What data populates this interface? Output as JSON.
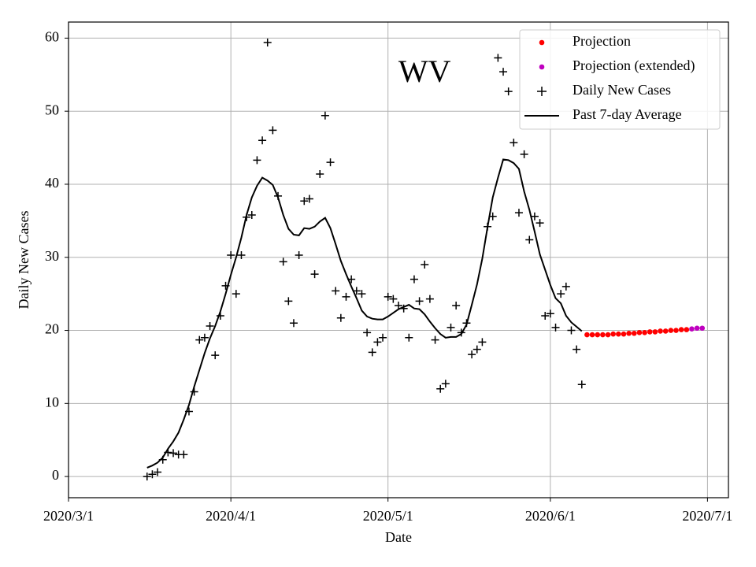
{
  "chart_data": {
    "type": "line",
    "xlabel": "Date",
    "ylabel": "Daily New Cases",
    "annotations": [
      {
        "text": "WV",
        "x": "2020/5/8",
        "y": 55
      }
    ],
    "xlim": [
      "2020/3/1",
      "2020/7/5"
    ],
    "xticks": [
      "2020/3/1",
      "2020/4/1",
      "2020/5/1",
      "2020/6/1",
      "2020/7/1"
    ],
    "ylim": [
      -2.9,
      62.2
    ],
    "yticks": [
      0,
      10,
      20,
      30,
      40,
      50,
      60
    ],
    "grid": true,
    "legend": "upper right",
    "series": [
      {
        "name": "Projection",
        "color": "#ff0000",
        "mode": "dots",
        "x": [
          "2020/6/8",
          "2020/6/9",
          "2020/6/10",
          "2020/6/11",
          "2020/6/12",
          "2020/6/13",
          "2020/6/14",
          "2020/6/15",
          "2020/6/16",
          "2020/6/17",
          "2020/6/18",
          "2020/6/19",
          "2020/6/20",
          "2020/6/21",
          "2020/6/22",
          "2020/6/23",
          "2020/6/24",
          "2020/6/25",
          "2020/6/26",
          "2020/6/27"
        ],
        "values": [
          19.4,
          19.4,
          19.4,
          19.4,
          19.4,
          19.5,
          19.5,
          19.5,
          19.6,
          19.6,
          19.7,
          19.7,
          19.8,
          19.8,
          19.9,
          19.9,
          20.0,
          20.0,
          20.1,
          20.1
        ]
      },
      {
        "name": "Projection (extended)",
        "color": "#bf00bf",
        "mode": "dots",
        "x": [
          "2020/6/28",
          "2020/6/29",
          "2020/6/30"
        ],
        "values": [
          20.2,
          20.3,
          20.3
        ]
      },
      {
        "name": "Daily New Cases",
        "color": "#000000",
        "mode": "crosses",
        "x": [
          "2020/3/16",
          "2020/3/17",
          "2020/3/18",
          "2020/3/19",
          "2020/3/20",
          "2020/3/21",
          "2020/3/22",
          "2020/3/23",
          "2020/3/24",
          "2020/3/25",
          "2020/3/26",
          "2020/3/27",
          "2020/3/28",
          "2020/3/29",
          "2020/3/30",
          "2020/3/31",
          "2020/4/1",
          "2020/4/2",
          "2020/4/3",
          "2020/4/4",
          "2020/4/5",
          "2020/4/6",
          "2020/4/7",
          "2020/4/8",
          "2020/4/9",
          "2020/4/10",
          "2020/4/11",
          "2020/4/12",
          "2020/4/13",
          "2020/4/14",
          "2020/4/15",
          "2020/4/16",
          "2020/4/17",
          "2020/4/18",
          "2020/4/19",
          "2020/4/20",
          "2020/4/21",
          "2020/4/22",
          "2020/4/23",
          "2020/4/24",
          "2020/4/25",
          "2020/4/26",
          "2020/4/27",
          "2020/4/28",
          "2020/4/29",
          "2020/4/30",
          "2020/5/1",
          "2020/5/2",
          "2020/5/3",
          "2020/5/4",
          "2020/5/5",
          "2020/5/6",
          "2020/5/7",
          "2020/5/8",
          "2020/5/9",
          "2020/5/10",
          "2020/5/11",
          "2020/5/12",
          "2020/5/13",
          "2020/5/14",
          "2020/5/15",
          "2020/5/16",
          "2020/5/17",
          "2020/5/18",
          "2020/5/19",
          "2020/5/20",
          "2020/5/21",
          "2020/5/22",
          "2020/5/23",
          "2020/5/24",
          "2020/5/25",
          "2020/5/26",
          "2020/5/27",
          "2020/5/28",
          "2020/5/29",
          "2020/5/30",
          "2020/5/31",
          "2020/6/1",
          "2020/6/2",
          "2020/6/3",
          "2020/6/4",
          "2020/6/5",
          "2020/6/6",
          "2020/6/7"
        ],
        "values": [
          0,
          0.3,
          0.6,
          2.3,
          3.3,
          3.2,
          3.0,
          3.0,
          8.9,
          11.6,
          18.7,
          19.0,
          20.6,
          16.6,
          22.0,
          26.1,
          30.3,
          25.0,
          30.3,
          35.5,
          35.8,
          43.3,
          46.0,
          59.4,
          47.4,
          38.4,
          29.4,
          24.0,
          21.0,
          30.3,
          37.7,
          38.0,
          27.7,
          41.4,
          49.4,
          43.0,
          25.4,
          21.7,
          24.6,
          27.0,
          25.4,
          25.0,
          19.7,
          17.0,
          18.4,
          19.0,
          24.6,
          24.3,
          23.4,
          23.0,
          19.0,
          27.0,
          24.0,
          29.0,
          24.3,
          18.7,
          12.0,
          12.7,
          20.4,
          23.4,
          19.7,
          21.0,
          16.7,
          17.4,
          18.4,
          34.2,
          35.6,
          57.3,
          55.4,
          52.7,
          45.7,
          36.1,
          44.1,
          32.4,
          35.6,
          34.7,
          22.0,
          22.3,
          20.4,
          25.0,
          26.0,
          20.0,
          17.4,
          12.6
        ]
      },
      {
        "name": "Past 7-day Average",
        "color": "#000000",
        "mode": "line",
        "x": [
          "2020/3/16",
          "2020/3/17",
          "2020/3/18",
          "2020/3/19",
          "2020/3/20",
          "2020/3/21",
          "2020/3/22",
          "2020/3/23",
          "2020/3/24",
          "2020/3/25",
          "2020/3/26",
          "2020/3/27",
          "2020/3/28",
          "2020/3/29",
          "2020/3/30",
          "2020/3/31",
          "2020/4/1",
          "2020/4/2",
          "2020/4/3",
          "2020/4/4",
          "2020/4/5",
          "2020/4/6",
          "2020/4/7",
          "2020/4/8",
          "2020/4/9",
          "2020/4/10",
          "2020/4/11",
          "2020/4/12",
          "2020/4/13",
          "2020/4/14",
          "2020/4/15",
          "2020/4/16",
          "2020/4/17",
          "2020/4/18",
          "2020/4/19",
          "2020/4/20",
          "2020/4/21",
          "2020/4/22",
          "2020/4/23",
          "2020/4/24",
          "2020/4/25",
          "2020/4/26",
          "2020/4/27",
          "2020/4/28",
          "2020/4/29",
          "2020/4/30",
          "2020/5/1",
          "2020/5/2",
          "2020/5/3",
          "2020/5/4",
          "2020/5/5",
          "2020/5/6",
          "2020/5/7",
          "2020/5/8",
          "2020/5/9",
          "2020/5/10",
          "2020/5/11",
          "2020/5/12",
          "2020/5/13",
          "2020/5/14",
          "2020/5/15",
          "2020/5/16",
          "2020/5/17",
          "2020/5/18",
          "2020/5/19",
          "2020/5/20",
          "2020/5/21",
          "2020/5/22",
          "2020/5/23",
          "2020/5/24",
          "2020/5/25",
          "2020/5/26",
          "2020/5/27",
          "2020/5/28",
          "2020/5/29",
          "2020/5/30",
          "2020/5/31",
          "2020/6/1",
          "2020/6/2",
          "2020/6/3",
          "2020/6/4",
          "2020/6/5",
          "2020/6/6",
          "2020/6/7"
        ],
        "values": [
          1.2,
          1.5,
          1.9,
          2.6,
          3.8,
          4.8,
          6.0,
          7.8,
          9.8,
          12.3,
          14.6,
          16.9,
          18.9,
          20.6,
          22.6,
          25.0,
          27.6,
          30.0,
          32.7,
          35.8,
          38.2,
          39.8,
          40.9,
          40.5,
          39.9,
          38.2,
          35.8,
          33.9,
          33.1,
          33.0,
          34.0,
          33.9,
          34.2,
          34.9,
          35.4,
          34.0,
          31.8,
          29.5,
          27.7,
          26.0,
          24.4,
          22.7,
          21.9,
          21.6,
          21.5,
          21.5,
          21.9,
          22.4,
          22.9,
          23.2,
          23.5,
          23.0,
          22.9,
          22.2,
          21.2,
          20.3,
          19.5,
          19.0,
          19.1,
          19.1,
          19.5,
          20.8,
          23.5,
          26.3,
          29.8,
          34.1,
          38.2,
          40.9,
          43.4,
          43.3,
          42.9,
          42.1,
          39.0,
          36.5,
          33.5,
          30.4,
          28.3,
          26.2,
          24.4,
          23.7,
          22.0,
          21.1,
          20.5,
          19.9
        ]
      }
    ]
  }
}
